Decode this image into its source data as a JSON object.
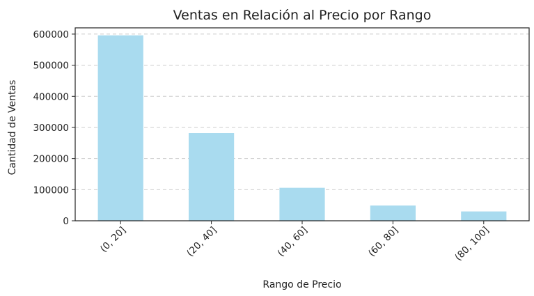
{
  "chart_data": {
    "type": "bar",
    "title": "Ventas en Relación al Precio por Rango",
    "xlabel": "Rango de Precio",
    "ylabel": "Cantidad de Ventas",
    "categories": [
      "(0, 20]",
      "(20, 40]",
      "(40, 60]",
      "(60, 80]",
      "(80, 100]"
    ],
    "values": [
      596000,
      282000,
      106000,
      49000,
      30000
    ],
    "ylim": [
      0,
      620000
    ],
    "yticks": [
      0,
      100000,
      200000,
      300000,
      400000,
      500000,
      600000
    ],
    "ytick_labels": [
      "0",
      "100000",
      "200000",
      "300000",
      "400000",
      "500000",
      "600000"
    ],
    "grid": "y-dashed",
    "bar_color": "#a9dbef",
    "legend": "none"
  }
}
